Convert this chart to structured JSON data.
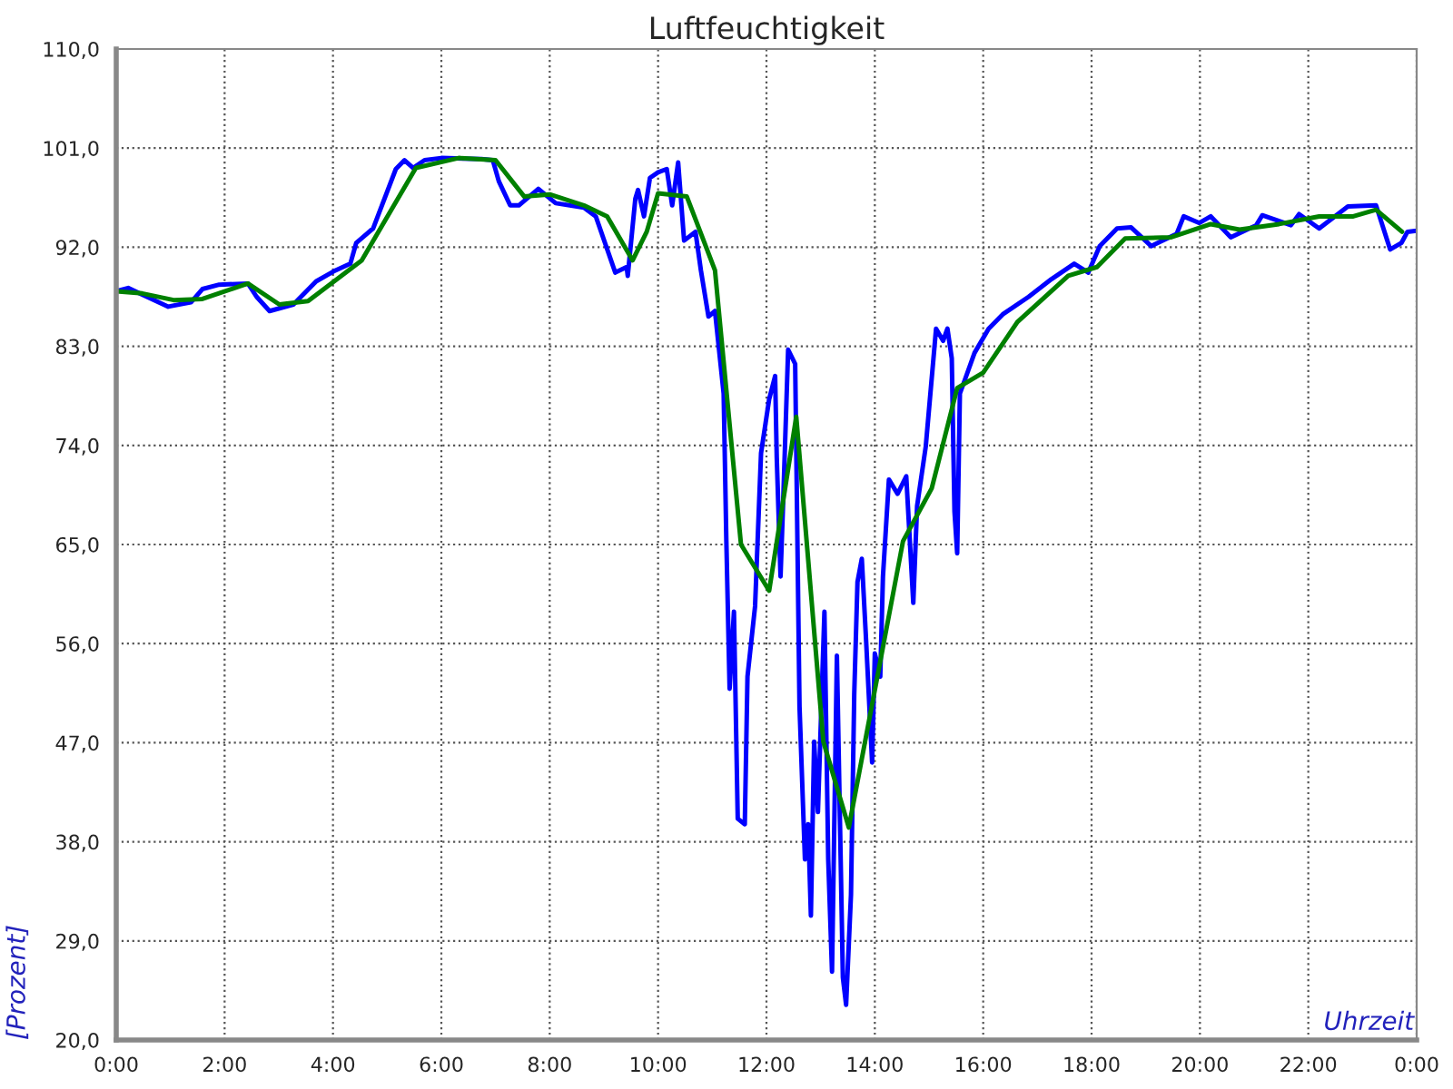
{
  "chart_data": {
    "type": "line",
    "title": "Luftfeuchtigkeit",
    "xlabel": "Uhrzeit",
    "ylabel": "[Prozent]",
    "xlim": [
      0,
      24
    ],
    "ylim": [
      20,
      110
    ],
    "xticks": [
      {
        "value": 0,
        "label": "0:00"
      },
      {
        "value": 2,
        "label": "2:00"
      },
      {
        "value": 4,
        "label": "4:00"
      },
      {
        "value": 6,
        "label": "6:00"
      },
      {
        "value": 8,
        "label": "8:00"
      },
      {
        "value": 10,
        "label": "10:00"
      },
      {
        "value": 12,
        "label": "12:00"
      },
      {
        "value": 14,
        "label": "14:00"
      },
      {
        "value": 16,
        "label": "16:00"
      },
      {
        "value": 18,
        "label": "18:00"
      },
      {
        "value": 20,
        "label": "20:00"
      },
      {
        "value": 22,
        "label": "22:00"
      },
      {
        "value": 24,
        "label": "0:00"
      }
    ],
    "yticks": [
      {
        "value": 20,
        "label": "20,0"
      },
      {
        "value": 29,
        "label": "29,0"
      },
      {
        "value": 38,
        "label": "38,0"
      },
      {
        "value": 47,
        "label": "47,0"
      },
      {
        "value": 56,
        "label": "56,0"
      },
      {
        "value": 65,
        "label": "65,0"
      },
      {
        "value": 74,
        "label": "74,0"
      },
      {
        "value": 83,
        "label": "83,0"
      },
      {
        "value": 92,
        "label": "92,0"
      },
      {
        "value": 101,
        "label": "101,0"
      },
      {
        "value": 110,
        "label": "110,0"
      }
    ],
    "grid": true,
    "legend": false,
    "marker": "none",
    "line_style": "solid",
    "series": [
      {
        "color": "#0000ff",
        "x": [
          0,
          0.22,
          0.43,
          0.96,
          1.38,
          1.59,
          1.9,
          2.43,
          2.59,
          2.83,
          3.27,
          3.69,
          4.01,
          4.32,
          4.43,
          4.74,
          5.16,
          5.32,
          5.48,
          5.69,
          6.0,
          6.74,
          6.95,
          7.06,
          7.27,
          7.43,
          7.79,
          8.11,
          8.63,
          8.85,
          9.21,
          9.42,
          9.44,
          9.58,
          9.63,
          9.74,
          9.85,
          10.0,
          10.16,
          10.26,
          10.37,
          10.48,
          10.69,
          10.79,
          10.93,
          11.05,
          11.21,
          11.26,
          11.32,
          11.4,
          11.47,
          11.6,
          11.65,
          11.79,
          11.9,
          12.05,
          12.16,
          12.19,
          12.26,
          12.31,
          12.4,
          12.53,
          12.61,
          12.71,
          12.77,
          12.82,
          12.88,
          12.95,
          13.07,
          13.14,
          13.21,
          13.3,
          13.41,
          13.47,
          13.56,
          13.62,
          13.68,
          13.76,
          13.84,
          13.95,
          14.0,
          14.1,
          14.15,
          14.26,
          14.42,
          14.58,
          14.71,
          14.78,
          14.94,
          15.13,
          15.26,
          15.34,
          15.42,
          15.47,
          15.52,
          15.57,
          15.84,
          16.1,
          16.36,
          16.84,
          17.26,
          17.68,
          17.94,
          18.15,
          18.47,
          18.73,
          19.1,
          19.57,
          19.7,
          19.99,
          20.2,
          20.57,
          21.04,
          21.15,
          21.68,
          21.83,
          22.2,
          22.73,
          23.25,
          23.51,
          23.72,
          23.83,
          24.0
        ],
        "values": [
          88.0,
          88.3,
          87.8,
          86.6,
          87.0,
          88.2,
          88.6,
          88.7,
          87.5,
          86.2,
          86.8,
          88.9,
          89.8,
          90.5,
          92.4,
          93.7,
          99.1,
          99.9,
          99.2,
          99.9,
          100.1,
          100.0,
          99.9,
          98.0,
          95.8,
          95.8,
          97.3,
          96.0,
          95.6,
          94.8,
          89.7,
          90.2,
          89.4,
          96.4,
          97.2,
          94.8,
          98.3,
          98.8,
          99.1,
          95.8,
          99.7,
          92.6,
          93.4,
          89.9,
          85.7,
          86.2,
          78.7,
          65.3,
          51.9,
          58.9,
          40.1,
          39.6,
          53.0,
          59.4,
          73.3,
          78.2,
          80.3,
          72.9,
          62.1,
          69.1,
          82.7,
          81.4,
          50.3,
          36.4,
          39.6,
          31.3,
          47.1,
          40.7,
          58.9,
          36.4,
          26.2,
          54.9,
          25.7,
          23.2,
          33.2,
          51.4,
          61.6,
          63.7,
          56.2,
          45.2,
          55.1,
          53.0,
          62.1,
          70.9,
          69.6,
          71.2,
          59.7,
          68.5,
          73.9,
          84.6,
          83.5,
          84.6,
          81.9,
          68.0,
          64.2,
          78.7,
          82.4,
          84.6,
          85.9,
          87.5,
          89.1,
          90.5,
          89.7,
          92.1,
          93.7,
          93.8,
          92.1,
          93.2,
          94.8,
          94.2,
          94.8,
          92.9,
          94.0,
          94.9,
          94.0,
          95.0,
          93.7,
          95.7,
          95.8,
          91.8,
          92.4,
          93.4,
          93.5
        ]
      },
      {
        "color": "#008000",
        "x": [
          0,
          0.48,
          1.06,
          1.59,
          2.43,
          3.01,
          3.54,
          4.53,
          5.53,
          6.32,
          7.0,
          7.53,
          8.0,
          8.63,
          9.06,
          9.53,
          9.79,
          10.0,
          10.53,
          11.05,
          11.53,
          12.05,
          12.55,
          13.05,
          13.52,
          14.52,
          15.05,
          15.52,
          16.0,
          16.63,
          17.57,
          18.1,
          18.62,
          19.47,
          20.2,
          20.73,
          21.46,
          22.2,
          22.83,
          23.25,
          23.73
        ],
        "values": [
          88.0,
          87.8,
          87.2,
          87.3,
          88.7,
          86.8,
          87.1,
          90.8,
          99.2,
          100.1,
          99.9,
          96.6,
          96.8,
          95.8,
          94.8,
          90.8,
          93.4,
          96.9,
          96.6,
          89.9,
          65.0,
          60.8,
          76.6,
          47.1,
          39.3,
          65.3,
          70.1,
          79.2,
          80.6,
          85.2,
          89.4,
          90.2,
          92.8,
          92.9,
          94.1,
          93.6,
          94.1,
          94.8,
          94.8,
          95.4,
          93.4
        ]
      }
    ]
  }
}
